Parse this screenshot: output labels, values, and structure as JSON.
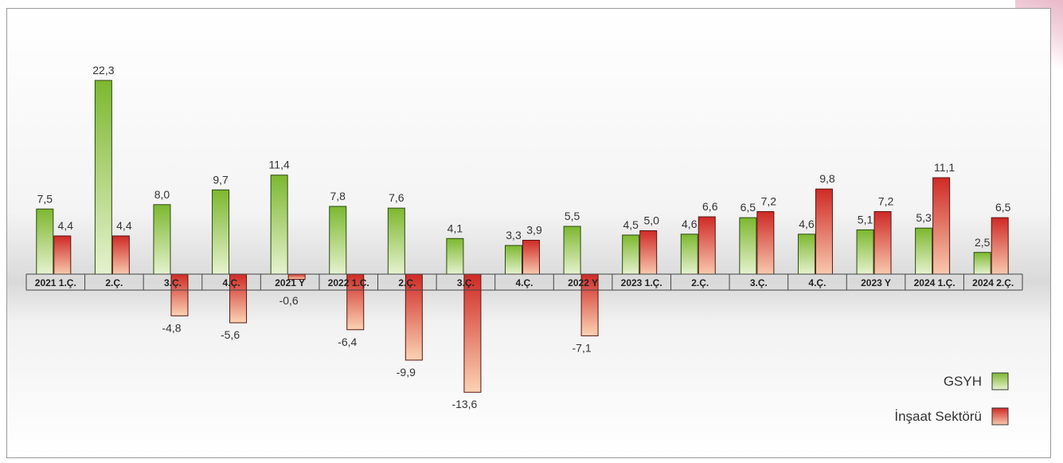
{
  "chart_data": {
    "type": "bar",
    "categories": [
      "2021 1.Ç.",
      "2.Ç.",
      "3.Ç.",
      "4.Ç.",
      "2021 Y",
      "2022 1.Ç.",
      "2.Ç.",
      "3.Ç.",
      "4.Ç.",
      "2022 Y",
      "2023 1.Ç.",
      "2.Ç.",
      "3.Ç.",
      "4.Ç.",
      "2023 Y",
      "2024 1.Ç.",
      "2024 2.Ç."
    ],
    "series": [
      {
        "name": "GSYH",
        "values": [
          7.5,
          22.3,
          8.0,
          9.7,
          11.4,
          7.8,
          7.6,
          4.1,
          3.3,
          5.5,
          4.5,
          4.6,
          6.5,
          4.6,
          5.1,
          5.3,
          2.5
        ],
        "labels": [
          "7,5",
          "22,3",
          "8,0",
          "9,7",
          "11,4",
          "7,8",
          "7,6",
          "4,1",
          "3,3",
          "5,5",
          "4,5",
          "4,6",
          "6,5",
          "4,6",
          "5,1",
          "5,3",
          "2,5"
        ],
        "color": "#8dc63f"
      },
      {
        "name": "İnşaat Sektörü",
        "values": [
          4.4,
          4.4,
          -4.8,
          -5.6,
          -0.6,
          -6.4,
          -9.9,
          -13.6,
          3.9,
          -7.1,
          5.0,
          6.6,
          7.2,
          9.8,
          7.2,
          11.1,
          6.5
        ],
        "labels": [
          "4,4",
          "4,4",
          "-4,8",
          "-5,6",
          "-0,6",
          "-6,4",
          "-9,9",
          "-13,6",
          "3,9",
          "-7,1",
          "5,0",
          "6,6",
          "7,2",
          "9,8",
          "7,2",
          "11,1",
          "6,5"
        ],
        "color": "#d9352a"
      }
    ],
    "title": "",
    "xlabel": "",
    "ylabel": "",
    "ylim": [
      -14,
      23
    ],
    "grid": false,
    "legend": "bottom-right"
  }
}
